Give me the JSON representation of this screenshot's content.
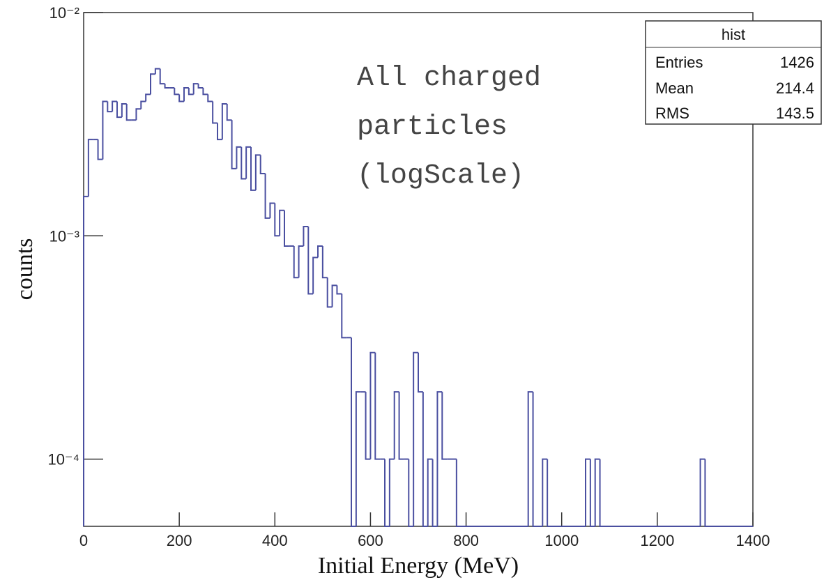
{
  "chart_data": {
    "type": "histogram",
    "xlabel": "Initial Energy (MeV)",
    "ylabel": "counts",
    "annotation": [
      "All charged",
      "particles",
      "(logScale)"
    ],
    "stats": {
      "title": "hist",
      "rows": [
        [
          "Entries",
          "1426"
        ],
        [
          "Mean",
          "214.4"
        ],
        [
          "RMS",
          "143.5"
        ]
      ]
    },
    "color": "#4a4fa0",
    "log_y": true,
    "bins": [
      0,
      10,
      20,
      30,
      40,
      50,
      60,
      70,
      80,
      90,
      100,
      110,
      120,
      130,
      140,
      150,
      160,
      170,
      180,
      190,
      200,
      210,
      220,
      230,
      240,
      250,
      260,
      270,
      280,
      290,
      300,
      310,
      320,
      330,
      340,
      350,
      360,
      370,
      380,
      390,
      400,
      410,
      420,
      430,
      440,
      450,
      460,
      470,
      480,
      490,
      500,
      510,
      520,
      530,
      540,
      550,
      560,
      570,
      580,
      590,
      600,
      610,
      620,
      630,
      640,
      650,
      660,
      670,
      680,
      690,
      700,
      710,
      720,
      730,
      740,
      750,
      760,
      770,
      780,
      790,
      800,
      810,
      820,
      830,
      840,
      850,
      860,
      870,
      880,
      890,
      900,
      910,
      920,
      930,
      940,
      950,
      960,
      970,
      980,
      990,
      1000,
      1010,
      1020,
      1030,
      1040,
      1050,
      1060,
      1070,
      1080,
      1090,
      1100,
      1110,
      1120,
      1130,
      1140,
      1150,
      1160,
      1170,
      1180,
      1190,
      1200,
      1210,
      1220,
      1230,
      1240,
      1250,
      1260,
      1270,
      1280,
      1290,
      1300,
      1310,
      1320,
      1330,
      1340,
      1350,
      1360,
      1370,
      1380,
      1390,
      1400
    ],
    "values": [
      0.0015,
      0.0027,
      0.0027,
      0.0022,
      0.004,
      0.0036,
      0.004,
      0.0034,
      0.0039,
      0.0033,
      0.0033,
      0.0037,
      0.004,
      0.0043,
      0.0053,
      0.0056,
      0.0048,
      0.0046,
      0.0046,
      0.0043,
      0.004,
      0.0046,
      0.0043,
      0.0048,
      0.0046,
      0.0043,
      0.004,
      0.0032,
      0.0027,
      0.0039,
      0.0033,
      0.002,
      0.0025,
      0.0018,
      0.0025,
      0.0016,
      0.0023,
      0.0019,
      0.0012,
      0.0014,
      0.001,
      0.0013,
      0.0009,
      0.0009,
      0.00065,
      0.0009,
      0.0011,
      0.00055,
      0.0008,
      0.0009,
      0.00065,
      0.00048,
      0.0006,
      0.00055,
      0.00035,
      0.00035,
      0,
      0.0002,
      0.0002,
      0.0001,
      0.0003,
      0.0001,
      0.0001,
      0,
      0.0001,
      0.0002,
      0.0001,
      0.0001,
      0,
      0.0003,
      0.0002,
      0,
      0.0001,
      0,
      0.0002,
      0.0001,
      0.0001,
      0.0001,
      0,
      0,
      0,
      0,
      0,
      0,
      0,
      0,
      0,
      0,
      0,
      0,
      0,
      0,
      0,
      0.0002,
      0,
      0,
      0.0001,
      0,
      0,
      0,
      0,
      0,
      0,
      0,
      0,
      0.0001,
      0,
      0.0001,
      0,
      0,
      0,
      0,
      0,
      0,
      0,
      0,
      0,
      0,
      0,
      0,
      0,
      0,
      0,
      0,
      0,
      0,
      0,
      0,
      0,
      0.0001,
      0,
      0,
      0,
      0,
      0,
      0,
      0,
      0,
      0,
      0
    ],
    "xlim": [
      0,
      1400
    ],
    "xticks": [
      0,
      200,
      400,
      600,
      800,
      1000,
      1200,
      1400
    ],
    "ylim": [
      5e-05,
      0.01
    ],
    "yticks": [
      {
        "value": 0.0001,
        "label": "10⁻⁴"
      },
      {
        "value": 0.001,
        "label": "10⁻³"
      },
      {
        "value": 0.01,
        "label": "10⁻²"
      }
    ]
  }
}
